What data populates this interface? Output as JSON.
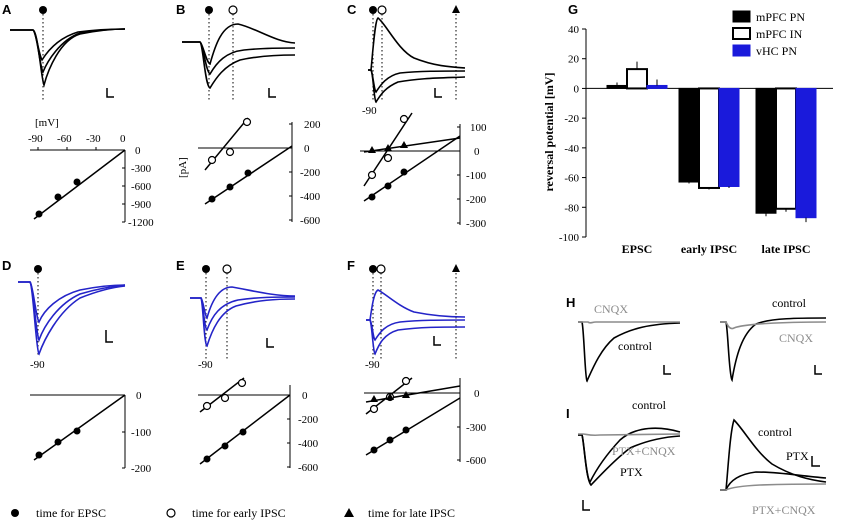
{
  "panels": {
    "A": "A",
    "B": "B",
    "C": "C",
    "D": "D",
    "E": "E",
    "F": "F",
    "G": "G",
    "H": "H",
    "I": "I"
  },
  "labels": {
    "mv": "[mV]",
    "pa": "[pA]",
    "minus90": "-90",
    "a_x_ticks": [
      "-90",
      "-60",
      "-30",
      "0"
    ],
    "a_y_ticks": [
      "0",
      "-300",
      "-600",
      "-900",
      "-1200"
    ],
    "b_y_ticks": [
      "200",
      "0",
      "-200",
      "-400",
      "-600"
    ],
    "c_y_ticks": [
      "100",
      "0",
      "-100",
      "-200",
      "-300"
    ],
    "d_y_ticks": [
      "0",
      "-100",
      "-200"
    ],
    "e_y_ticks": [
      "0",
      "-200",
      "-400",
      "-600"
    ],
    "f_y_ticks": [
      "0",
      "-300",
      "-600"
    ],
    "h_traces": {
      "cnqx": "CNQX",
      "control": "control"
    },
    "i_traces": {
      "control": "control",
      "ptx": "PTX",
      "ptx_cnqx": "PTX+CNQX"
    }
  },
  "legend": [
    {
      "label": "time for EPSC",
      "marker": "filled-circle"
    },
    {
      "label": "time for early IPSC",
      "marker": "open-circle"
    },
    {
      "label": "time for late IPSC",
      "marker": "filled-triangle"
    }
  ],
  "colors": {
    "mpfc_pn": "#000000",
    "mpfc_in": "#ffffff",
    "vhc_pn": "#1a1adb",
    "blue_trace": "#2424c8",
    "gray_trace": "#8c8c8c"
  },
  "chart_data": {
    "type": "bar",
    "ylabel": "reversal potential [mV]",
    "ylim": [
      -100,
      40
    ],
    "yticks": [
      40,
      20,
      0,
      -20,
      -40,
      -60,
      -80,
      -100
    ],
    "categories": [
      "EPSC",
      "early IPSC",
      "late IPSC"
    ],
    "series": [
      {
        "name": "mPFC PN",
        "color": "#000000",
        "values": [
          2,
          -63,
          -84
        ],
        "errors": [
          2,
          1,
          2
        ]
      },
      {
        "name": "mPFC IN",
        "color": "#ffffff",
        "values": [
          13,
          -67,
          -81
        ],
        "errors": [
          5,
          1,
          2
        ]
      },
      {
        "name": "vHC PN",
        "color": "#1a1adb",
        "values": [
          2,
          -66,
          -87
        ],
        "errors": [
          4,
          1,
          3
        ]
      }
    ]
  }
}
